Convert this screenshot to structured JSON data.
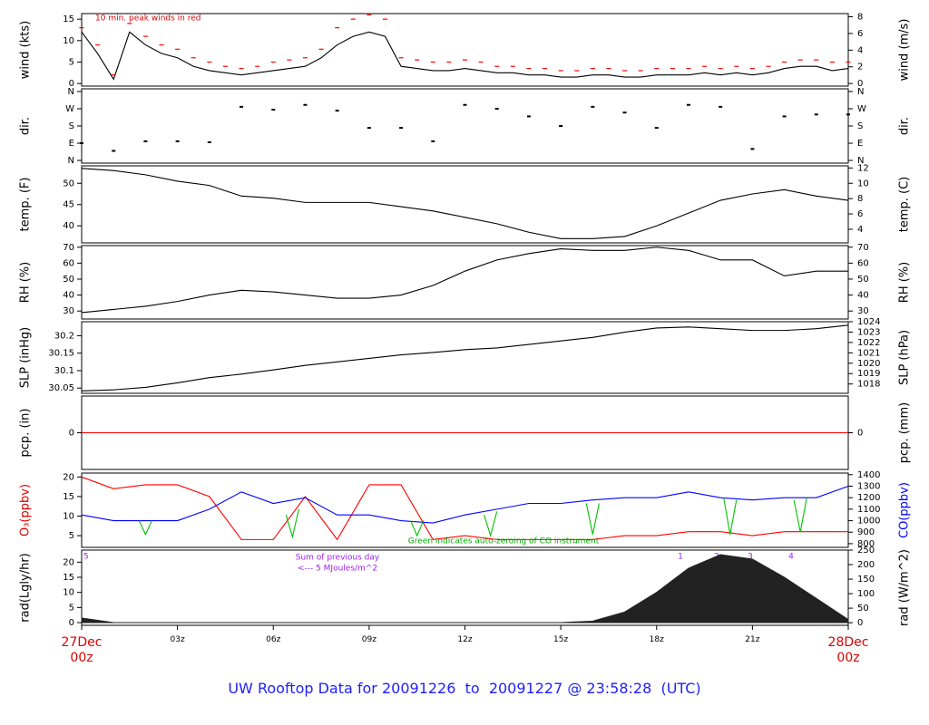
{
  "chart_data": [
    {
      "type": "line",
      "ylabel": "wind (kts)",
      "y2label": "wind (m/s)",
      "xlim": [
        0,
        24
      ],
      "ylim": [
        -0.6,
        16.3
      ],
      "yticks": [
        0,
        5,
        10,
        15
      ],
      "y2lim": [
        -0.31,
        8.38
      ],
      "y2ticks": [
        0,
        2,
        4,
        6,
        8
      ],
      "annotations": [
        "10 min. peak winds in red"
      ],
      "series": [
        {
          "color": "#000000",
          "x": [
            0,
            0.5,
            1,
            1.5,
            2,
            2.5,
            3,
            3.5,
            4,
            4.5,
            5,
            5.5,
            6,
            6.5,
            7,
            7.5,
            8,
            8.5,
            9,
            9.5,
            10,
            10.5,
            11,
            11.5,
            12,
            12.5,
            13,
            13.5,
            14,
            14.5,
            15,
            15.5,
            16,
            16.5,
            17,
            17.5,
            18,
            18.5,
            19,
            19.5,
            20,
            20.5,
            21,
            21.5,
            22,
            22.5,
            23,
            23.5,
            24
          ],
          "values": [
            12,
            7,
            1,
            12,
            9,
            7,
            6,
            4,
            3,
            2.5,
            2,
            2.5,
            3,
            3.5,
            4,
            6,
            9,
            11,
            12,
            11,
            4,
            3.5,
            3,
            3,
            3.5,
            3,
            2.5,
            2.5,
            2,
            2,
            1.5,
            1.5,
            2,
            2,
            1.5,
            1.5,
            2,
            2,
            2,
            2.5,
            2,
            2.5,
            2,
            2.5,
            3.5,
            4,
            4,
            3,
            3.5
          ]
        },
        {
          "color": "#ff0000",
          "marker": "dash",
          "x": [
            0,
            0.5,
            1,
            1.5,
            2,
            2.5,
            3,
            3.5,
            4,
            4.5,
            5,
            5.5,
            6,
            6.5,
            7,
            7.5,
            8,
            8.5,
            9,
            9.5,
            10,
            10.5,
            11,
            11.5,
            12,
            12.5,
            13,
            13.5,
            14,
            14.5,
            15,
            15.5,
            16,
            16.5,
            17,
            17.5,
            18,
            18.5,
            19,
            19.5,
            20,
            20.5,
            21,
            21.5,
            22,
            22.5,
            23,
            23.5,
            24
          ],
          "values": [
            13,
            9,
            2,
            14,
            11,
            9,
            8,
            6,
            5,
            4,
            3.5,
            4,
            5,
            5.5,
            6,
            8,
            13,
            15,
            16,
            15,
            6,
            5.5,
            5,
            5,
            5.5,
            5,
            4,
            4,
            3.5,
            3.5,
            3,
            3,
            3.5,
            3.5,
            3,
            3,
            3.5,
            3.5,
            3.5,
            4,
            3.5,
            4,
            3.5,
            4,
            5,
            5.5,
            5.5,
            5,
            5
          ]
        }
      ]
    },
    {
      "type": "scatter",
      "ylabel": "dir.",
      "y2label": "dir.",
      "xlim": [
        0,
        24
      ],
      "ylim": [
        -14,
        374
      ],
      "yticks": [
        {
          "value": 0,
          "label": "N"
        },
        {
          "value": 90,
          "label": "E"
        },
        {
          "value": 180,
          "label": "S"
        },
        {
          "value": 270,
          "label": "W"
        },
        {
          "value": 360,
          "label": "N"
        }
      ],
      "y2lim": [
        -14,
        374
      ],
      "y2ticks": [
        {
          "value": 0,
          "label": "N"
        },
        {
          "value": 90,
          "label": "E"
        },
        {
          "value": 180,
          "label": "S"
        },
        {
          "value": 270,
          "label": "W"
        },
        {
          "value": 360,
          "label": "N"
        }
      ],
      "series": [
        {
          "color": "#000000",
          "x": [
            0,
            1,
            2,
            3,
            4,
            5,
            6,
            7,
            8,
            9,
            10,
            11,
            12,
            13,
            14,
            15,
            16,
            17,
            18,
            19,
            20,
            21,
            22,
            23,
            24
          ],
          "values": [
            90,
            50,
            100,
            100,
            95,
            280,
            265,
            290,
            260,
            170,
            170,
            100,
            290,
            270,
            230,
            180,
            280,
            250,
            170,
            290,
            280,
            60,
            230,
            240,
            240
          ]
        }
      ]
    },
    {
      "type": "line",
      "ylabel": "temp. (F)",
      "y2label": "temp. (C)",
      "xlim": [
        0,
        24
      ],
      "ylim": [
        36,
        54.1
      ],
      "yticks": [
        40,
        45,
        50
      ],
      "y2lim": [
        2.22,
        12.28
      ],
      "y2ticks": [
        4,
        6,
        8,
        10,
        12
      ],
      "series": [
        {
          "color": "#000000",
          "x": [
            0,
            1,
            2,
            3,
            4,
            5,
            6,
            7,
            8,
            9,
            10,
            11,
            12,
            13,
            14,
            15,
            16,
            17,
            18,
            19,
            20,
            21,
            22,
            23,
            24
          ],
          "values": [
            53.5,
            53,
            52,
            50.5,
            49.5,
            47,
            46.5,
            45.5,
            45.5,
            45.5,
            44.5,
            43.5,
            42,
            40.5,
            38.5,
            37,
            37,
            37.5,
            40,
            43,
            46,
            47.5,
            48.5,
            47,
            46
          ]
        }
      ]
    },
    {
      "type": "line",
      "ylabel": "RH (%)",
      "y2label": "RH (%)",
      "xlim": [
        0,
        24
      ],
      "ylim": [
        25,
        71
      ],
      "yticks": [
        30,
        40,
        50,
        60,
        70
      ],
      "y2lim": [
        25,
        71
      ],
      "y2ticks": [
        30,
        40,
        50,
        60,
        70
      ],
      "series": [
        {
          "color": "#000000",
          "x": [
            0,
            1,
            2,
            3,
            4,
            5,
            6,
            7,
            8,
            9,
            10,
            11,
            12,
            13,
            14,
            15,
            16,
            17,
            18,
            19,
            20,
            21,
            22,
            23,
            24
          ],
          "values": [
            29,
            31,
            33,
            36,
            40,
            43,
            42,
            40,
            38,
            38,
            40,
            46,
            55,
            62,
            66,
            69,
            68,
            68,
            70,
            68,
            62,
            62,
            52,
            55,
            55
          ]
        }
      ]
    },
    {
      "type": "line",
      "ylabel": "SLP (inHg)",
      "y2label": "SLP (hPa)",
      "xlim": [
        0,
        24
      ],
      "ylim": [
        30.035,
        30.24
      ],
      "yticks": [
        30.05,
        30.1,
        30.15,
        30.2
      ],
      "y2lim": [
        1017.1,
        1024.0
      ],
      "y2ticks": [
        1018,
        1019,
        1020,
        1021,
        1022,
        1023,
        1024
      ],
      "series": [
        {
          "color": "#000000",
          "x": [
            0,
            1,
            2,
            3,
            4,
            5,
            6,
            7,
            8,
            9,
            10,
            11,
            12,
            13,
            14,
            15,
            16,
            17,
            18,
            19,
            20,
            21,
            22,
            23,
            24
          ],
          "values": [
            30.042,
            30.045,
            30.052,
            30.065,
            30.08,
            30.09,
            30.102,
            30.115,
            30.125,
            30.135,
            30.145,
            30.152,
            30.16,
            30.165,
            30.175,
            30.185,
            30.195,
            30.21,
            30.222,
            30.225,
            30.22,
            30.215,
            30.215,
            30.22,
            30.23
          ]
        }
      ]
    },
    {
      "type": "line",
      "ylabel": "pcp. (in)",
      "y2label": "pcp. (mm)",
      "xlim": [
        0,
        24
      ],
      "ylim": [
        -1,
        1
      ],
      "yticks": [
        0
      ],
      "y2lim": [
        -25.4,
        25.4
      ],
      "y2ticks": [
        0
      ],
      "series": [
        {
          "color": "#ff0000",
          "x": [
            0,
            24
          ],
          "values": [
            0,
            0
          ]
        }
      ]
    },
    {
      "type": "line",
      "ylabel": "O₃(ppbv)",
      "y2label": "CO(ppbv)",
      "xlim": [
        0,
        24
      ],
      "ylim": [
        2,
        21
      ],
      "yticks": [
        5,
        10,
        15,
        20
      ],
      "y2lim": [
        768,
        1414
      ],
      "y2ticks": [
        800,
        900,
        1000,
        1100,
        1200,
        1300,
        1400
      ],
      "annotations": [
        "Green indicates auto-zeroing of CO instrument"
      ],
      "series": [
        {
          "color": "#ff0000",
          "x": [
            0,
            1,
            2,
            3,
            4,
            5,
            6,
            7,
            8,
            9,
            10,
            11,
            12,
            13,
            14,
            15,
            16,
            17,
            18,
            19,
            20,
            21,
            22,
            23,
            24
          ],
          "values": [
            20,
            17,
            18,
            18,
            15,
            4,
            4,
            15,
            4,
            18,
            18,
            4,
            5,
            4,
            4,
            4,
            4,
            5,
            5,
            6,
            6,
            5,
            6,
            6,
            6
          ]
        },
        {
          "color": "#0000ff",
          "axis": "y2",
          "x": [
            0,
            1,
            2,
            3,
            4,
            5,
            6,
            7,
            8,
            9,
            10,
            11,
            12,
            13,
            14,
            15,
            16,
            17,
            18,
            19,
            20,
            21,
            22,
            23,
            24
          ],
          "values": [
            1050,
            1000,
            1000,
            1000,
            1100,
            1250,
            1150,
            1200,
            1050,
            1050,
            1000,
            980,
            1050,
            1100,
            1150,
            1150,
            1180,
            1200,
            1200,
            1250,
            1200,
            1180,
            1200,
            1200,
            1300
          ]
        },
        {
          "color": "#00c000",
          "axis": "y2",
          "x": [
            1.8,
            2,
            2.2,
            2.3,
            6.4,
            6.6,
            6.8,
            6.9,
            10.3,
            10.5,
            10.7,
            10.8,
            12.6,
            12.8,
            13,
            13.1,
            15.8,
            16,
            16.2,
            16.3,
            20.1,
            20.3,
            20.5,
            20.6,
            22.3,
            22.5,
            22.7
          ],
          "values": [
            1000,
            880,
            1000,
            null,
            1050,
            860,
            1100,
            null,
            1000,
            870,
            1000,
            null,
            1050,
            870,
            1080,
            null,
            1150,
            880,
            1150,
            null,
            1200,
            880,
            1180,
            null,
            1180,
            900,
            1200
          ]
        }
      ]
    },
    {
      "type": "area",
      "ylabel": "rad(Lgly/hr)",
      "y2label": "rad (W/m^2)",
      "xlim": [
        0,
        24
      ],
      "ylim": [
        -0.9,
        24
      ],
      "yticks": [
        0,
        5,
        10,
        15,
        20
      ],
      "y2lim": [
        -9,
        250
      ],
      "y2ticks": [
        0,
        50,
        100,
        150,
        200,
        250
      ],
      "annotations": [
        "5",
        "Sum of previous day",
        "<--- 5 MJoules/m^2",
        "1",
        "2",
        "3",
        "4"
      ],
      "xticks": [
        {
          "value": 0,
          "label": "27Dec\n00z"
        },
        {
          "value": 3,
          "label": "03z"
        },
        {
          "value": 6,
          "label": "06z"
        },
        {
          "value": 9,
          "label": "09z"
        },
        {
          "value": 12,
          "label": "12z"
        },
        {
          "value": 15,
          "label": "15z"
        },
        {
          "value": 18,
          "label": "18z"
        },
        {
          "value": 21,
          "label": "21z"
        },
        {
          "value": 24,
          "label": "28Dec\n00z"
        }
      ],
      "series": [
        {
          "color": "#222222",
          "x": [
            0,
            1,
            2,
            3,
            4,
            5,
            6,
            7,
            8,
            9,
            10,
            11,
            12,
            13,
            14,
            15,
            16,
            17,
            18,
            19,
            20,
            21,
            22,
            23,
            24
          ],
          "values": [
            1.5,
            0,
            0,
            0,
            0,
            0,
            0,
            0,
            0,
            0,
            0,
            0,
            0,
            0,
            0,
            0,
            0.5,
            3.5,
            10,
            18,
            22.5,
            21,
            15,
            8,
            1
          ]
        }
      ]
    }
  ],
  "title": "UW Rooftop Data for 20091226  to  20091227 @ 23:58:28  (UTC)"
}
